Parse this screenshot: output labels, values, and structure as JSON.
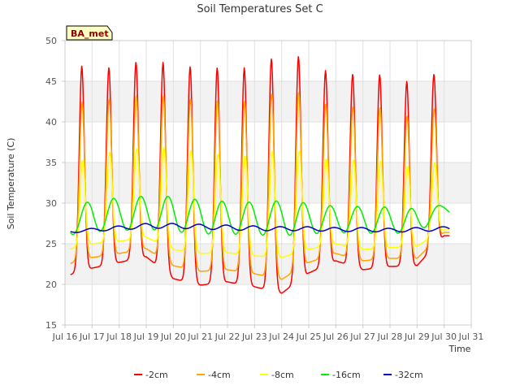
{
  "chart_data": {
    "type": "line",
    "title": "Soil Temperatures Set C",
    "xlabel": "Time",
    "ylabel": "Soil Temperature (C)",
    "site_label": "BA_met",
    "xlim": [
      16.0,
      31.0
    ],
    "ylim": [
      15,
      50
    ],
    "x_ticks": [
      16,
      17,
      18,
      19,
      20,
      21,
      22,
      23,
      24,
      25,
      26,
      27,
      28,
      29,
      30,
      31
    ],
    "x_tick_labels": [
      "Jul 16",
      "Jul 17",
      "Jul 18",
      "Jul 19",
      "Jul 20",
      "Jul 21",
      "Jul 22",
      "Jul 23",
      "Jul 24",
      "Jul 25",
      "Jul 26",
      "Jul 27",
      "Jul 28",
      "Jul 29",
      "Jul 30",
      "Jul 31"
    ],
    "y_ticks": [
      15,
      20,
      25,
      30,
      35,
      40,
      45,
      50
    ],
    "grid": "horizontal bands",
    "legend_position": "bottom",
    "x_unit": "day of July",
    "days": [
      16.5,
      17.5,
      18.5,
      19.5,
      20.5,
      21.5,
      22.5,
      23.5,
      24.5,
      25.5,
      26.5,
      27.5,
      28.5,
      29.5,
      30.5
    ],
    "series": [
      {
        "name": "-2cm",
        "color": "#ff0000",
        "peak_time": 0.62,
        "lag_days": 0,
        "daily_max": [
          46.0,
          47.4,
          46.2,
          48.0,
          46.9,
          46.7,
          46.6,
          46.7,
          48.4,
          47.8,
          45.4,
          46.1,
          45.6,
          44.6,
          46.6
        ],
        "daily_min": [
          21.0,
          22.0,
          22.7,
          23.4,
          20.7,
          19.9,
          20.3,
          19.7,
          18.9,
          21.4,
          22.9,
          21.8,
          22.2,
          22.3,
          26.0
        ]
      },
      {
        "name": "-4cm",
        "color": "#ffa500",
        "peak_time": 0.63,
        "lag_days": 0.03,
        "daily_max": [
          41.0,
          43.3,
          42.5,
          43.7,
          43.0,
          42.8,
          42.6,
          42.6,
          44.0,
          43.5,
          41.5,
          42.1,
          41.6,
          40.3,
          42.4
        ],
        "daily_min": [
          22.4,
          23.3,
          23.8,
          24.4,
          22.3,
          21.6,
          21.8,
          21.3,
          20.6,
          22.7,
          23.8,
          22.9,
          23.2,
          23.2,
          26.4
        ]
      },
      {
        "name": "-8cm",
        "color": "#ffff00",
        "peak_time": 0.65,
        "lag_days": 0.08,
        "daily_max": [
          33.0,
          36.5,
          36.2,
          37.0,
          36.8,
          36.3,
          35.9,
          35.8,
          36.7,
          36.3,
          35.0,
          35.5,
          35.0,
          34.3,
          35.4
        ],
        "daily_min": [
          24.2,
          25.0,
          25.3,
          25.8,
          24.3,
          23.8,
          23.9,
          23.5,
          23.3,
          24.3,
          25.0,
          24.3,
          24.5,
          24.7,
          26.8
        ]
      },
      {
        "name": "-16cm",
        "color": "#00ee00",
        "peak_time": 0.8,
        "lag_days": 0.3,
        "daily_max": [
          28.4,
          30.5,
          30.6,
          30.9,
          30.8,
          30.4,
          30.2,
          30.1,
          30.3,
          30.0,
          29.6,
          29.6,
          29.5,
          29.3,
          29.8
        ],
        "daily_min": [
          26.0,
          26.5,
          26.6,
          26.8,
          26.5,
          26.2,
          26.2,
          26.1,
          26.0,
          26.2,
          26.4,
          26.3,
          26.3,
          26.3,
          28.8
        ]
      },
      {
        "name": "-32cm",
        "color": "#0000cc",
        "peak_time": 0.95,
        "lag_days": 0.5,
        "daily_max": [
          26.6,
          26.9,
          27.2,
          27.5,
          27.5,
          27.4,
          27.3,
          27.2,
          27.1,
          27.1,
          27.0,
          27.0,
          26.9,
          27.0,
          27.1
        ],
        "daily_min": [
          26.3,
          26.5,
          26.7,
          26.9,
          26.9,
          26.8,
          26.7,
          26.6,
          26.6,
          26.6,
          26.5,
          26.5,
          26.4,
          26.5,
          26.6
        ]
      }
    ]
  },
  "colors": {
    "band": "#f2f2f2",
    "grid": "#e0e0e0",
    "axis": "#cccccc",
    "badge_fill": "#ffffc0",
    "badge_border": "#000000"
  }
}
